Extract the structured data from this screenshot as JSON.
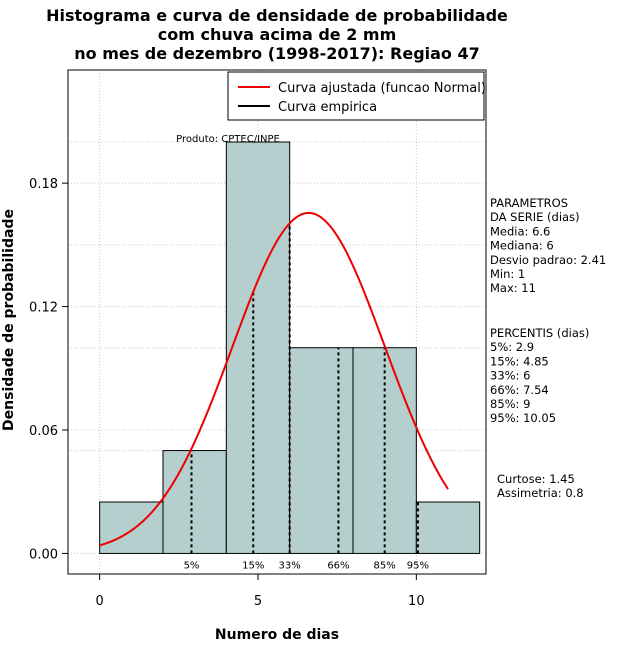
{
  "chart_data": {
    "type": "bar",
    "title_lines": [
      "Histograma e curva de densidade de probabilidade",
      "com chuva acima de 2 mm",
      "no mes de dezembro (1998-2017): Regiao 47"
    ],
    "xlabel": "Numero de dias",
    "ylabel": "Densidade de probabilidade",
    "xlim": [
      -1,
      12.2
    ],
    "ylim": [
      -0.01,
      0.235
    ],
    "x_ticks": [
      0,
      5,
      10
    ],
    "y_ticks": [
      0.0,
      0.06,
      0.12,
      0.18
    ],
    "y_tick_labels": [
      "0.00",
      "0.06",
      "0.12",
      "0.18"
    ],
    "grid": true,
    "bins": [
      {
        "x0": 0,
        "x1": 2,
        "density": 0.025
      },
      {
        "x0": 2,
        "x1": 4,
        "density": 0.05
      },
      {
        "x0": 4,
        "x1": 6,
        "density": 0.2
      },
      {
        "x0": 6,
        "x1": 8,
        "density": 0.1
      },
      {
        "x0": 8,
        "x1": 10,
        "density": 0.1
      },
      {
        "x0": 10,
        "x1": 12,
        "density": 0.025
      }
    ],
    "bar_color": "#b5cece",
    "normal_curve": {
      "mean": 6.6,
      "sd": 2.41,
      "x_from": 0,
      "x_to": 11,
      "color": "#ee0000"
    },
    "percentile_lines": [
      {
        "label": "5%",
        "x": 2.9
      },
      {
        "label": "15%",
        "x": 4.85
      },
      {
        "label": "33%",
        "x": 6
      },
      {
        "label": "66%",
        "x": 7.54
      },
      {
        "label": "85%",
        "x": 9
      },
      {
        "label": "95%",
        "x": 10.05
      }
    ],
    "legend": {
      "position": "top-right",
      "entries": [
        {
          "label": "Curva ajustada (funcao Normal)",
          "color": "#ee0000"
        },
        {
          "label": "Curva empirica",
          "color": "#000000"
        }
      ]
    },
    "source_note": "Produto: CPTEC/INPE"
  },
  "side_panel": {
    "params_lines": [
      "PARAMETROS",
      "DA SERIE (dias)",
      "  Media: 6.6",
      "  Mediana: 6",
      "  Desvio padrao: 2.41",
      "  Min: 1",
      "  Max: 11"
    ],
    "percentis_lines": [
      "PERCENTIS (dias)",
      "  5%: 2.9",
      "  15%: 4.85",
      "  33%: 6",
      "  66%: 7.54",
      "  85%: 9",
      "  95%: 10.05"
    ],
    "shape_lines": [
      "Curtose: 1.45",
      "Assimetria: 0.8"
    ]
  }
}
